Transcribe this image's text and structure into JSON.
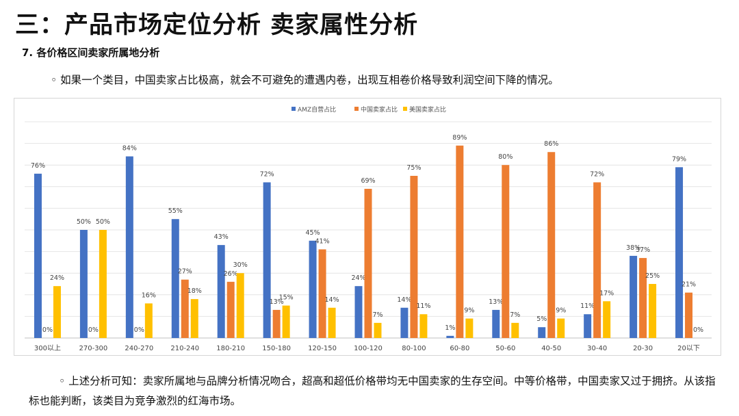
{
  "page": {
    "title": "三：产品市场定位分析 卖家属性分析",
    "subtitle": "7. 各价格区间卖家所属地分析",
    "intro": "◦ 如果一个类目，中国卖家占比极高，就会不可避免的遭遇内卷，出现互相卷价格导致利润空间下降的情况。",
    "conclusion": "◦ 上述分析可知：卖家所属地与品牌分析情况吻合，超高和超低价格带均无中国卖家的生存空间。中等价格带，中国卖家又过于拥挤。从该指标也能判断，该类目为竞争激烈的红海市场。"
  },
  "chart_data": {
    "type": "bar",
    "title": "",
    "xlabel": "",
    "ylabel": "",
    "ylim": [
      0,
      100
    ],
    "grid": true,
    "legend_position": "top-center",
    "categories": [
      "300以上",
      "270-300",
      "240-270",
      "210-240",
      "180-210",
      "150-180",
      "120-150",
      "100-120",
      "80-100",
      "60-80",
      "50-60",
      "40-50",
      "30-40",
      "20-30",
      "20以下"
    ],
    "series": [
      {
        "name": "AMZ自营占比",
        "color": "#4472C4",
        "values": [
          76,
          50,
          84,
          55,
          43,
          72,
          45,
          24,
          14,
          1,
          13,
          5,
          11,
          38,
          null
        ],
        "labels": [
          "76%",
          "50%",
          "84%",
          "55%",
          "43%",
          "72%",
          "45%",
          "24%",
          "14%",
          "1%",
          "13%",
          "5%",
          "11%",
          "38%",
          "79%"
        ]
      },
      {
        "name": "中国卖家占比",
        "color": "#ED7D31",
        "values": [
          0,
          0,
          0,
          27,
          26,
          13,
          41,
          69,
          75,
          89,
          80,
          86,
          72,
          37,
          21
        ],
        "labels": [
          "0%",
          "0%",
          "0%",
          "27%",
          "26%",
          "13%",
          "41%",
          "69%",
          "75%",
          "89%",
          "80%",
          "86%",
          "72%",
          "37%",
          "21%"
        ]
      },
      {
        "name": "美国卖家占比",
        "color": "#FFC000",
        "values": [
          24,
          50,
          16,
          18,
          30,
          15,
          14,
          7,
          11,
          9,
          7,
          9,
          17,
          25,
          0
        ],
        "labels": [
          "24%",
          "50%",
          "16%",
          "18%",
          "30%",
          "15%",
          "14%",
          "7%",
          "11%",
          "9%",
          "7%",
          "9%",
          "17%",
          "25%",
          "0%"
        ]
      }
    ],
    "note_first_series_last_value": 79
  }
}
